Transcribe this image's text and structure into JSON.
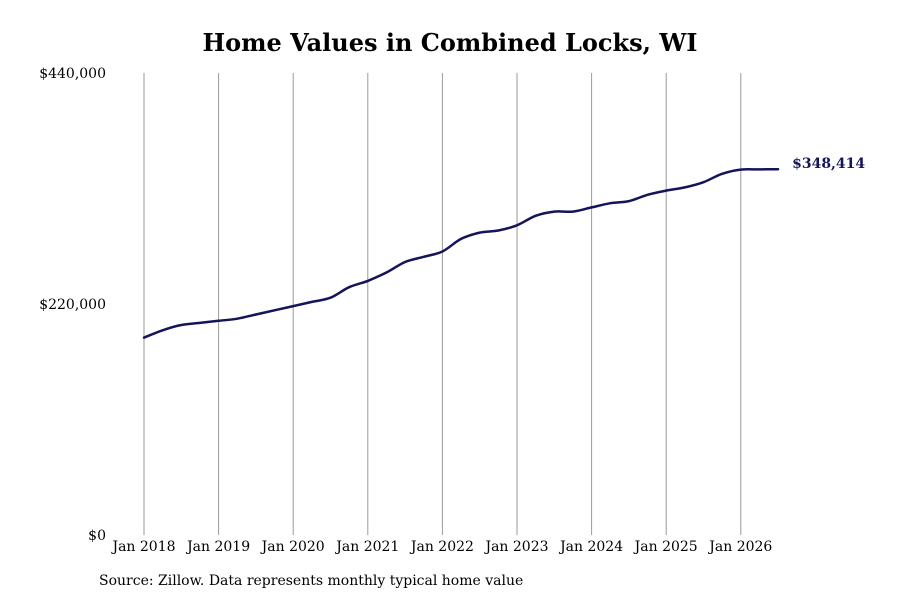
{
  "chart_data": {
    "type": "line",
    "title": "Home Values in Combined Locks, WI",
    "xlabel": "",
    "ylabel": "",
    "source_note": "Source: Zillow. Data represents monthly typical home value",
    "ylim": [
      0,
      440000
    ],
    "y_ticks": [
      {
        "value": 0,
        "label": "$0"
      },
      {
        "value": 220000,
        "label": "$220,000"
      },
      {
        "value": 440000,
        "label": "$440,000"
      }
    ],
    "x_ticks": [
      "Jan 2018",
      "Jan 2019",
      "Jan 2020",
      "Jan 2021",
      "Jan 2022",
      "Jan 2023",
      "Jan 2024",
      "Jan 2025",
      "Jan 2026"
    ],
    "grid": {
      "vertical": true,
      "horizontal": false
    },
    "line_color": "#14145a",
    "end_label": "$348,414",
    "series": [
      {
        "x": [
          "2018-01",
          "2018-04",
          "2018-07",
          "2018-10",
          "2019-01",
          "2019-04",
          "2019-07",
          "2019-10",
          "2020-01",
          "2020-04",
          "2020-07",
          "2020-10",
          "2021-01",
          "2021-04",
          "2021-07",
          "2021-10",
          "2022-01",
          "2022-04",
          "2022-07",
          "2022-10",
          "2023-01",
          "2023-04",
          "2023-07",
          "2023-10",
          "2024-01",
          "2024-04",
          "2024-07",
          "2024-10",
          "2025-01",
          "2025-04",
          "2025-07",
          "2025-10",
          "2026-01",
          "2026-04",
          "2026-07"
        ],
        "values": [
          188000,
          195000,
          200000,
          202000,
          204000,
          206000,
          210000,
          214000,
          218000,
          222000,
          226000,
          236000,
          242000,
          250000,
          260000,
          265000,
          270000,
          282000,
          288000,
          290000,
          295000,
          304000,
          308000,
          308000,
          312000,
          316000,
          318000,
          324000,
          328000,
          331000,
          336000,
          344000,
          348000,
          348200,
          348414
        ]
      }
    ]
  }
}
